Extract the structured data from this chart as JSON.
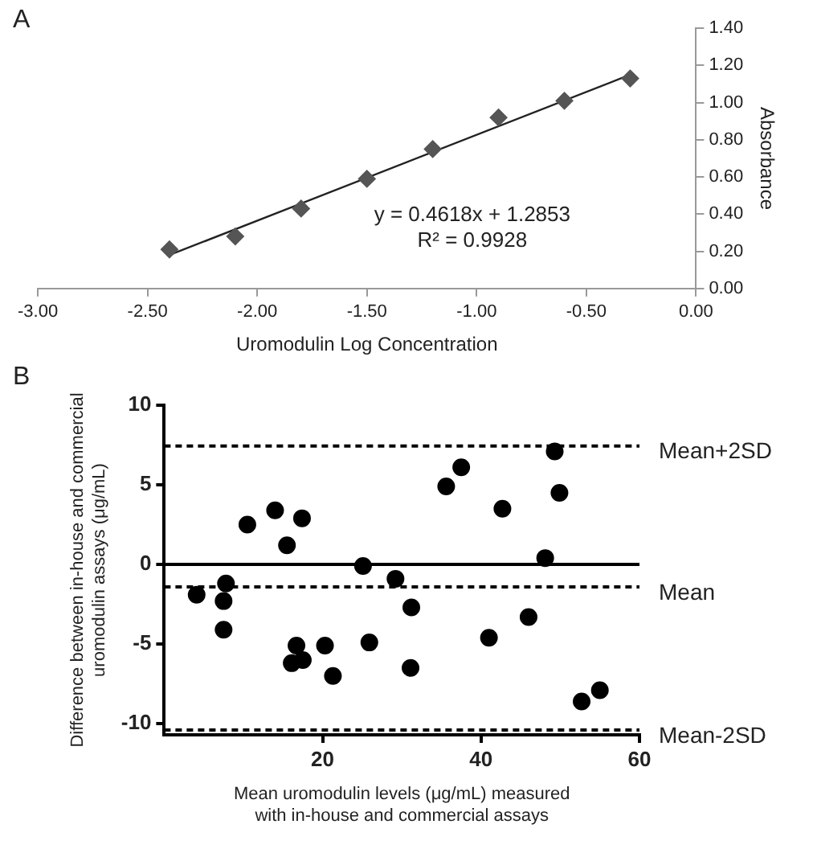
{
  "chart_data": [
    {
      "type": "scatter",
      "title": "A",
      "xlabel": "Uromodulin Log Concentration",
      "ylabel": "Absorbance",
      "x": [
        -2.4,
        -2.1,
        -1.8,
        -1.5,
        -1.2,
        -0.9,
        -0.6,
        -0.3
      ],
      "series": [
        {
          "color": "#555555",
          "values": [
            0.21,
            0.28,
            0.43,
            0.59,
            0.75,
            0.92,
            1.01,
            1.13
          ]
        },
        {
          "type": "line",
          "color": "#222222",
          "x": [
            -2.4,
            -0.3
          ],
          "values": [
            0.18,
            1.15
          ],
          "marker": "none"
        }
      ],
      "xlim": [
        -3,
        0
      ],
      "xticks": [
        {
          "value": -3,
          "label": "-3.00"
        },
        {
          "value": -2.5,
          "label": "-2.50"
        },
        {
          "value": -2,
          "label": "-2.00"
        },
        {
          "value": -1.5,
          "label": "-1.50"
        },
        {
          "value": -1,
          "label": "-1.00"
        },
        {
          "value": -0.5,
          "label": "-0.50"
        },
        {
          "value": 0,
          "label": "0.00"
        }
      ],
      "ylim": [
        0,
        1.4
      ],
      "yticks": [
        {
          "value": 0,
          "label": "0.00"
        },
        {
          "value": 0.2,
          "label": "0.20"
        },
        {
          "value": 0.4,
          "label": "0.40"
        },
        {
          "value": 0.6,
          "label": "0.60"
        },
        {
          "value": 0.8,
          "label": "0.80"
        },
        {
          "value": 1,
          "label": "1.00"
        },
        {
          "value": 1.2,
          "label": "1.20"
        },
        {
          "value": 1.4,
          "label": "1.40"
        }
      ],
      "annotations": [
        "y = 0.4618x + 1.2853",
        "R² = 0.9928"
      ],
      "marker": "diamond",
      "grid": false,
      "legend": false
    },
    {
      "type": "scatter",
      "title": "B",
      "xlabel": "Mean uromodulin levels (μg/mL) measured\nwith in-house and commercial assays",
      "ylabel": "Difference between in-house and commercial\nuromodulin assays (μg/mL)",
      "x": [
        4.1,
        7.8,
        7.5,
        7.5,
        10.5,
        14.0,
        15.5,
        17.4,
        16.7,
        16.1,
        17.5,
        20.3,
        21.3,
        25.1,
        25.9,
        29.2,
        31.2,
        31.1,
        35.6,
        37.5,
        41.0,
        42.7,
        46.0,
        48.1,
        49.3,
        49.9,
        52.7,
        55.0
      ],
      "series": [
        {
          "color": "#000000",
          "values": [
            -1.9,
            -1.2,
            -2.3,
            -4.1,
            2.5,
            3.4,
            1.2,
            2.9,
            -5.1,
            -6.2,
            -6.0,
            -5.1,
            -7.0,
            -0.1,
            -4.9,
            -0.9,
            -2.7,
            -6.5,
            4.9,
            6.1,
            -4.6,
            3.5,
            -3.3,
            0.4,
            7.1,
            4.5,
            -8.6,
            -7.9
          ]
        }
      ],
      "xlim": [
        0,
        60
      ],
      "xticks": [
        20,
        40,
        60
      ],
      "ylim": [
        -10.7,
        10
      ],
      "yticks": [
        -10,
        -5,
        0,
        5,
        10
      ],
      "ref_lines": [
        {
          "axis": "y",
          "value": 0,
          "label": null,
          "line_style": "solid"
        },
        {
          "axis": "y",
          "value": 7.44,
          "label": "Mean+2SD",
          "line_style": "dashed"
        },
        {
          "axis": "y",
          "value": -1.41,
          "label": "Mean",
          "line_style": "dashed"
        },
        {
          "axis": "y",
          "value": -10.4,
          "label": "Mean-2SD",
          "line_style": "dashed"
        }
      ],
      "marker": "circle",
      "grid": false,
      "legend": false
    }
  ]
}
